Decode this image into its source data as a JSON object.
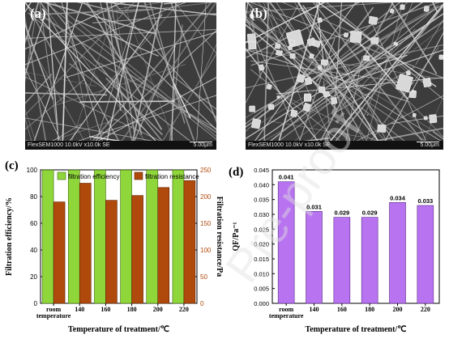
{
  "panels": {
    "a": {
      "label": "(a)",
      "caption": "FlexSEM1000 10.0kV x10.0k SE",
      "scale": "5.00μm"
    },
    "b": {
      "label": "(b)",
      "caption": "FlexSEM1000 10.0kV x10.0k SE",
      "scale": "5.00μm"
    }
  },
  "watermark": "Pre-proof",
  "colors": {
    "efficiency": "#8fd63a",
    "resistance": "#b04a0c",
    "qf": "#b873f0"
  },
  "chart_data": [
    {
      "type": "bar",
      "panel_label": "(c)",
      "categories": [
        "room\ntemperature",
        "140",
        "160",
        "180",
        "200",
        "220"
      ],
      "xlabel": "Temperature of treatment/℃",
      "ylabel": "Filtration efficiency/%",
      "y2label": "Filtration resistance/Pa",
      "ylim": [
        0,
        100
      ],
      "y2lim": [
        0,
        250
      ],
      "yticks": [
        0,
        20,
        40,
        60,
        80,
        100
      ],
      "y2ticks": [
        0,
        50,
        100,
        150,
        200,
        250
      ],
      "legend_position": "top",
      "series": [
        {
          "name": "filtration efficiency",
          "axis": "left",
          "values": [
            99.9,
            99.9,
            99.9,
            99.9,
            99.9,
            99.9
          ]
        },
        {
          "name": "filtration resistance",
          "axis": "right",
          "values": [
            190,
            225,
            193,
            202,
            217,
            230
          ]
        }
      ]
    },
    {
      "type": "bar",
      "panel_label": "(d)",
      "categories": [
        "room\ntemperature",
        "140",
        "160",
        "180",
        "200",
        "220"
      ],
      "xlabel": "Temperature of treatment/℃",
      "ylabel": "QF/Pa⁻¹",
      "ylim": [
        0,
        0.045
      ],
      "yticks": [
        "0.000",
        "0.005",
        "0.010",
        "0.015",
        "0.020",
        "0.025",
        "0.030",
        "0.035",
        "0.040",
        "0.045"
      ],
      "values": [
        0.041,
        0.031,
        0.029,
        0.029,
        0.034,
        0.033
      ],
      "value_labels": [
        "0.041",
        "0.031",
        "0.029",
        "0.029",
        "0.034",
        "0.033"
      ]
    }
  ]
}
